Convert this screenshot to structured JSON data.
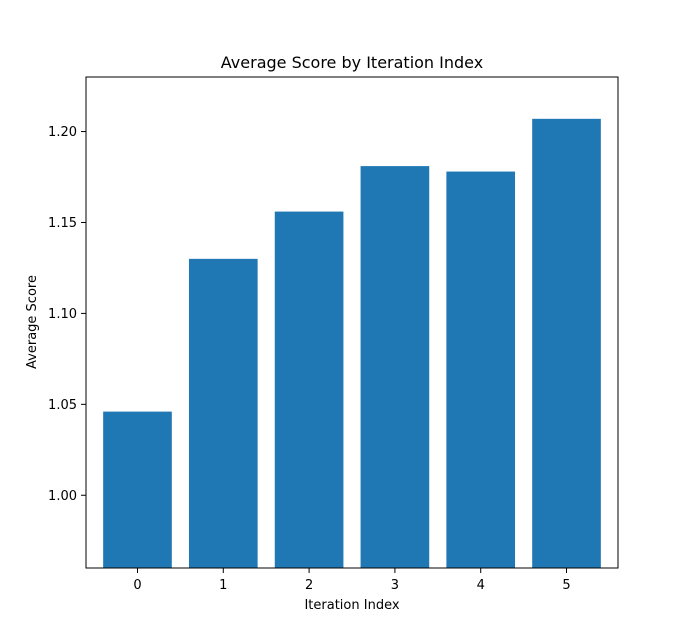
{
  "chart_data": {
    "type": "bar",
    "title": "Average Score by Iteration Index",
    "xlabel": "Iteration Index",
    "ylabel": "Average Score",
    "categories": [
      "0",
      "1",
      "2",
      "3",
      "4",
      "5"
    ],
    "values": [
      1.046,
      1.13,
      1.156,
      1.181,
      1.178,
      1.207
    ],
    "ylim": [
      0.96,
      1.23
    ],
    "yticks": [
      "1.00",
      "1.05",
      "1.10",
      "1.15",
      "1.20"
    ],
    "bar_color": "#1f77b4",
    "grid": false,
    "legend": false
  }
}
